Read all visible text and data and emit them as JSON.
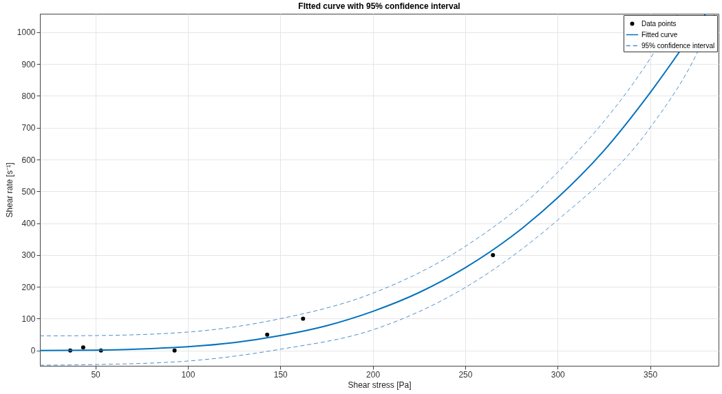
{
  "chart_data": {
    "type": "scatter",
    "title": "FItted curve with 95% confidence interval",
    "xlabel": "Shear stress [Pa]",
    "ylabel": "Shear rate [s⁻¹]",
    "xlim": [
      20,
      387
    ],
    "ylim": [
      -48,
      1058
    ],
    "xticks": [
      50,
      100,
      150,
      200,
      250,
      300,
      350
    ],
    "yticks": [
      0,
      100,
      200,
      300,
      400,
      500,
      600,
      700,
      800,
      900,
      1000
    ],
    "grid": true,
    "legend": "top right",
    "series": [
      {
        "name": "Data points",
        "marker": "circle",
        "color": "#000000",
        "x": [
          36.4,
          43.4,
          53,
          92.8,
          142.9,
          162.3,
          265
        ],
        "values": [
          0,
          10,
          0,
          0,
          50,
          100,
          300
        ]
      },
      {
        "name": "Fitted curve",
        "type": "line",
        "line_style": "solid",
        "color": "#0072bd",
        "x": [
          20,
          50,
          75,
          100,
          125,
          150,
          175,
          200,
          225,
          250,
          275,
          300,
          325,
          350,
          380
        ],
        "values": [
          0,
          1,
          5,
          12,
          25,
          47,
          78,
          123,
          182,
          260,
          358,
          480,
          628,
          810,
          1058
        ]
      },
      {
        "name": "95% confidence interval",
        "type": "line",
        "line_style": "dashed",
        "color": "#4d8cc9",
        "x": [
          20,
          50,
          100,
          150,
          200,
          250,
          300,
          350,
          365
        ],
        "values": [
          46,
          47,
          58,
          100,
          180,
          327,
          560,
          917,
          1058
        ]
      },
      {
        "type": "line",
        "line_style": "dashed",
        "color": "#4d8cc9",
        "x": [
          20,
          50,
          100,
          150,
          200,
          250,
          300,
          350,
          375,
          385
        ],
        "values": [
          -46,
          -44,
          -33,
          4,
          65,
          198,
          410,
          700,
          930,
          1058
        ]
      }
    ]
  }
}
